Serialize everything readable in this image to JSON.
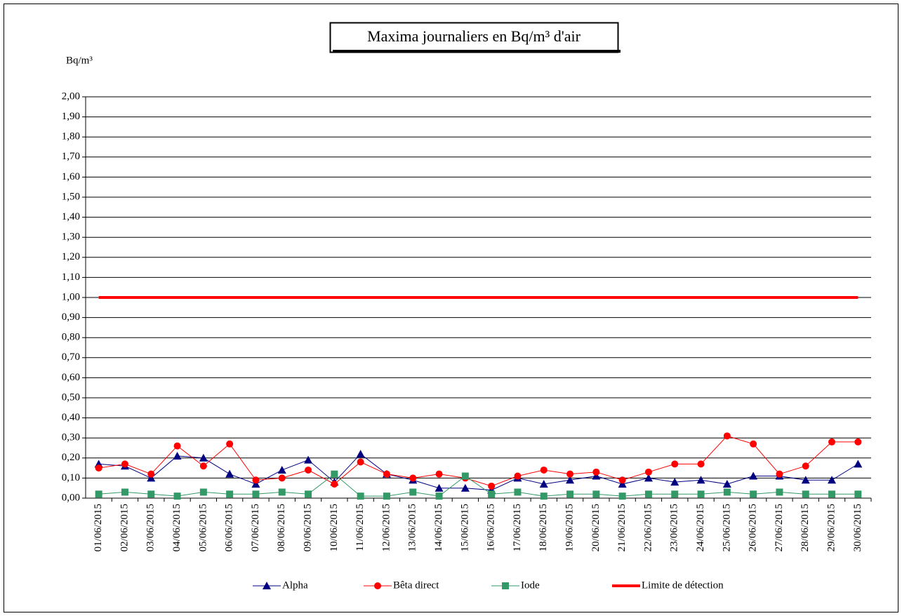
{
  "chart_data": {
    "type": "line",
    "title": "Maxima journaliers  en Bq/m³ d'air",
    "y_label": "Bq/m³",
    "categories": [
      "01/06/2015",
      "02/06/2015",
      "03/06/2015",
      "04/06/2015",
      "05/06/2015",
      "06/06/2015",
      "07/06/2015",
      "08/06/2015",
      "09/06/2015",
      "10/06/2015",
      "11/06/2015",
      "12/06/2015",
      "13/06/2015",
      "14/06/2015",
      "15/06/2015",
      "16/06/2015",
      "17/06/2015",
      "18/06/2015",
      "19/06/2015",
      "20/06/2015",
      "21/06/2015",
      "22/06/2015",
      "23/06/2015",
      "24/06/2015",
      "25/06/2015",
      "26/06/2015",
      "27/06/2015",
      "28/06/2015",
      "29/06/2015",
      "30/06/2015"
    ],
    "series": [
      {
        "name": "Alpha",
        "color": "#000080",
        "marker": "triangle",
        "values": [
          0.17,
          0.16,
          0.1,
          0.21,
          0.2,
          0.12,
          0.07,
          0.14,
          0.19,
          0.08,
          0.22,
          0.12,
          0.09,
          0.05,
          0.05,
          0.04,
          0.1,
          0.07,
          0.09,
          0.11,
          0.07,
          0.1,
          0.08,
          0.09,
          0.07,
          0.11,
          0.11,
          0.09,
          0.09,
          0.17
        ]
      },
      {
        "name": "Bêta direct",
        "color": "#ff0000",
        "marker": "circle",
        "values": [
          0.15,
          0.17,
          0.12,
          0.26,
          0.16,
          0.27,
          0.09,
          0.1,
          0.14,
          0.07,
          0.18,
          0.12,
          0.1,
          0.12,
          0.1,
          0.06,
          0.11,
          0.14,
          0.12,
          0.13,
          0.09,
          0.13,
          0.17,
          0.17,
          0.31,
          0.27,
          0.12,
          0.16,
          0.28,
          0.28
        ]
      },
      {
        "name": "Iode",
        "color": "#339966",
        "marker": "square",
        "values": [
          0.02,
          0.03,
          0.02,
          0.01,
          0.03,
          0.02,
          0.02,
          0.03,
          0.02,
          0.12,
          0.01,
          0.01,
          0.03,
          0.01,
          0.11,
          0.02,
          0.03,
          0.01,
          0.02,
          0.02,
          0.01,
          0.02,
          0.02,
          0.02,
          0.03,
          0.02,
          0.03,
          0.02,
          0.02,
          0.02
        ]
      },
      {
        "name": "Limite de détection",
        "color": "#ff0000",
        "marker": "none",
        "values": [
          1,
          1,
          1,
          1,
          1,
          1,
          1,
          1,
          1,
          1,
          1,
          1,
          1,
          1,
          1,
          1,
          1,
          1,
          1,
          1,
          1,
          1,
          1,
          1,
          1,
          1,
          1,
          1,
          1,
          1
        ]
      }
    ],
    "ylim": [
      0,
      2
    ],
    "yticks": [
      {
        "value": 0,
        "label": "0,00"
      },
      {
        "value": 0.1,
        "label": "0,10"
      },
      {
        "value": 0.2,
        "label": "0,20"
      },
      {
        "value": 0.3,
        "label": "0,30"
      },
      {
        "value": 0.4,
        "label": "0,40"
      },
      {
        "value": 0.5,
        "label": "0,50"
      },
      {
        "value": 0.6,
        "label": "0,60"
      },
      {
        "value": 0.7,
        "label": "0,70"
      },
      {
        "value": 0.8,
        "label": "0,80"
      },
      {
        "value": 0.9,
        "label": "0,90"
      },
      {
        "value": 1,
        "label": "1,00"
      },
      {
        "value": 1.1,
        "label": "1,10"
      },
      {
        "value": 1.2,
        "label": "1,20"
      },
      {
        "value": 1.3,
        "label": "1,30"
      },
      {
        "value": 1.4,
        "label": "1,40"
      },
      {
        "value": 1.5,
        "label": "1,50"
      },
      {
        "value": 1.6,
        "label": "1,60"
      },
      {
        "value": 1.7,
        "label": "1,70"
      },
      {
        "value": 1.8,
        "label": "1,80"
      },
      {
        "value": 1.9,
        "label": "1,90"
      },
      {
        "value": 2,
        "label": "2,00"
      }
    ],
    "grid": true,
    "legend": "bottom"
  }
}
